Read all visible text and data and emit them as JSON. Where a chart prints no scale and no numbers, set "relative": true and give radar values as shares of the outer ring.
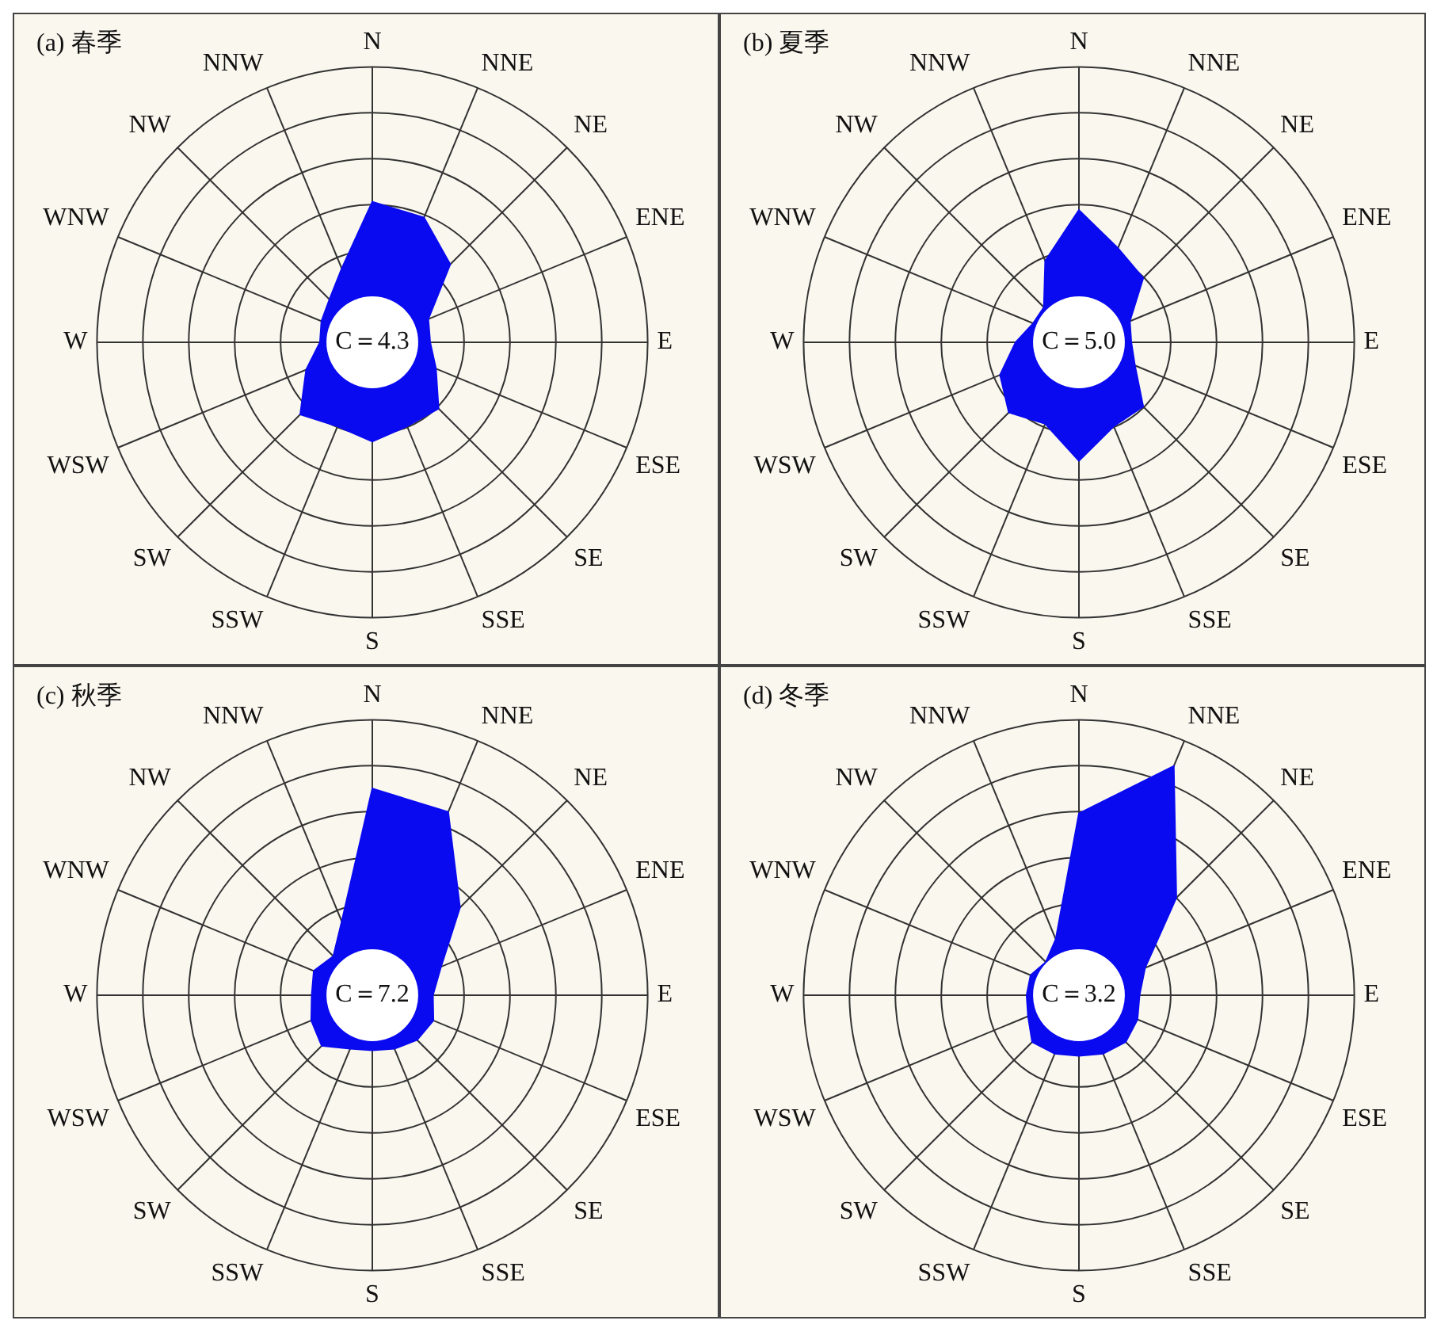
{
  "chart_data": [
    {
      "type": "radar",
      "title": "(a) 春季",
      "categories": [
        "N",
        "NNE",
        "NE",
        "ENE",
        "E",
        "ESE",
        "SE",
        "SSE",
        "S",
        "SSW",
        "SW",
        "WSW",
        "W",
        "WNW",
        "NW",
        "NNW"
      ],
      "relative": true,
      "grid": true,
      "annotations": [
        "C＝4.3"
      ],
      "series": [
        {
          "color": "#0a0af0",
          "values": [
            0.51,
            0.49,
            0.4,
            0.22,
            0.21,
            0.25,
            0.34,
            0.33,
            0.36,
            0.33,
            0.37,
            0.26,
            0.19,
            0.2,
            0.22,
            0.29
          ]
        }
      ]
    },
    {
      "type": "radar",
      "title": "(b) 夏季",
      "categories": [
        "N",
        "NNE",
        "NE",
        "ENE",
        "E",
        "ESE",
        "SE",
        "SSE",
        "S",
        "SSW",
        "SW",
        "WSW",
        "W",
        "WNW",
        "NW",
        "NNW"
      ],
      "relative": true,
      "grid": true,
      "annotations": [
        "C＝5.0"
      ],
      "series": [
        {
          "color": "#0a0af0",
          "values": [
            0.48,
            0.37,
            0.33,
            0.2,
            0.19,
            0.22,
            0.33,
            0.33,
            0.43,
            0.32,
            0.36,
            0.31,
            0.23,
            0.18,
            0.18,
            0.32
          ]
        }
      ]
    },
    {
      "type": "radar",
      "title": "(c) 秋季",
      "categories": [
        "N",
        "NNE",
        "NE",
        "ENE",
        "E",
        "ESE",
        "SE",
        "SSE",
        "S",
        "SSW",
        "SW",
        "WSW",
        "W",
        "WNW",
        "NW",
        "NNW"
      ],
      "relative": true,
      "grid": true,
      "annotations": [
        "C＝7.2"
      ],
      "series": [
        {
          "color": "#0a0af0",
          "values": [
            0.75,
            0.72,
            0.45,
            0.27,
            0.22,
            0.24,
            0.23,
            0.21,
            0.2,
            0.21,
            0.26,
            0.24,
            0.22,
            0.23,
            0.2,
            0.29
          ]
        }
      ]
    },
    {
      "type": "radar",
      "title": "(d) 冬季",
      "categories": [
        "N",
        "NNE",
        "NE",
        "ENE",
        "E",
        "ESE",
        "SE",
        "SSE",
        "S",
        "SSW",
        "SW",
        "WSW",
        "W",
        "WNW",
        "NW",
        "NNW"
      ],
      "relative": true,
      "grid": true,
      "annotations": [
        "C＝3.2"
      ],
      "series": [
        {
          "color": "#0a0af0",
          "values": [
            0.66,
            0.9,
            0.5,
            0.26,
            0.22,
            0.23,
            0.24,
            0.23,
            0.22,
            0.23,
            0.24,
            0.2,
            0.19,
            0.19,
            0.17,
            0.22
          ]
        }
      ]
    }
  ]
}
